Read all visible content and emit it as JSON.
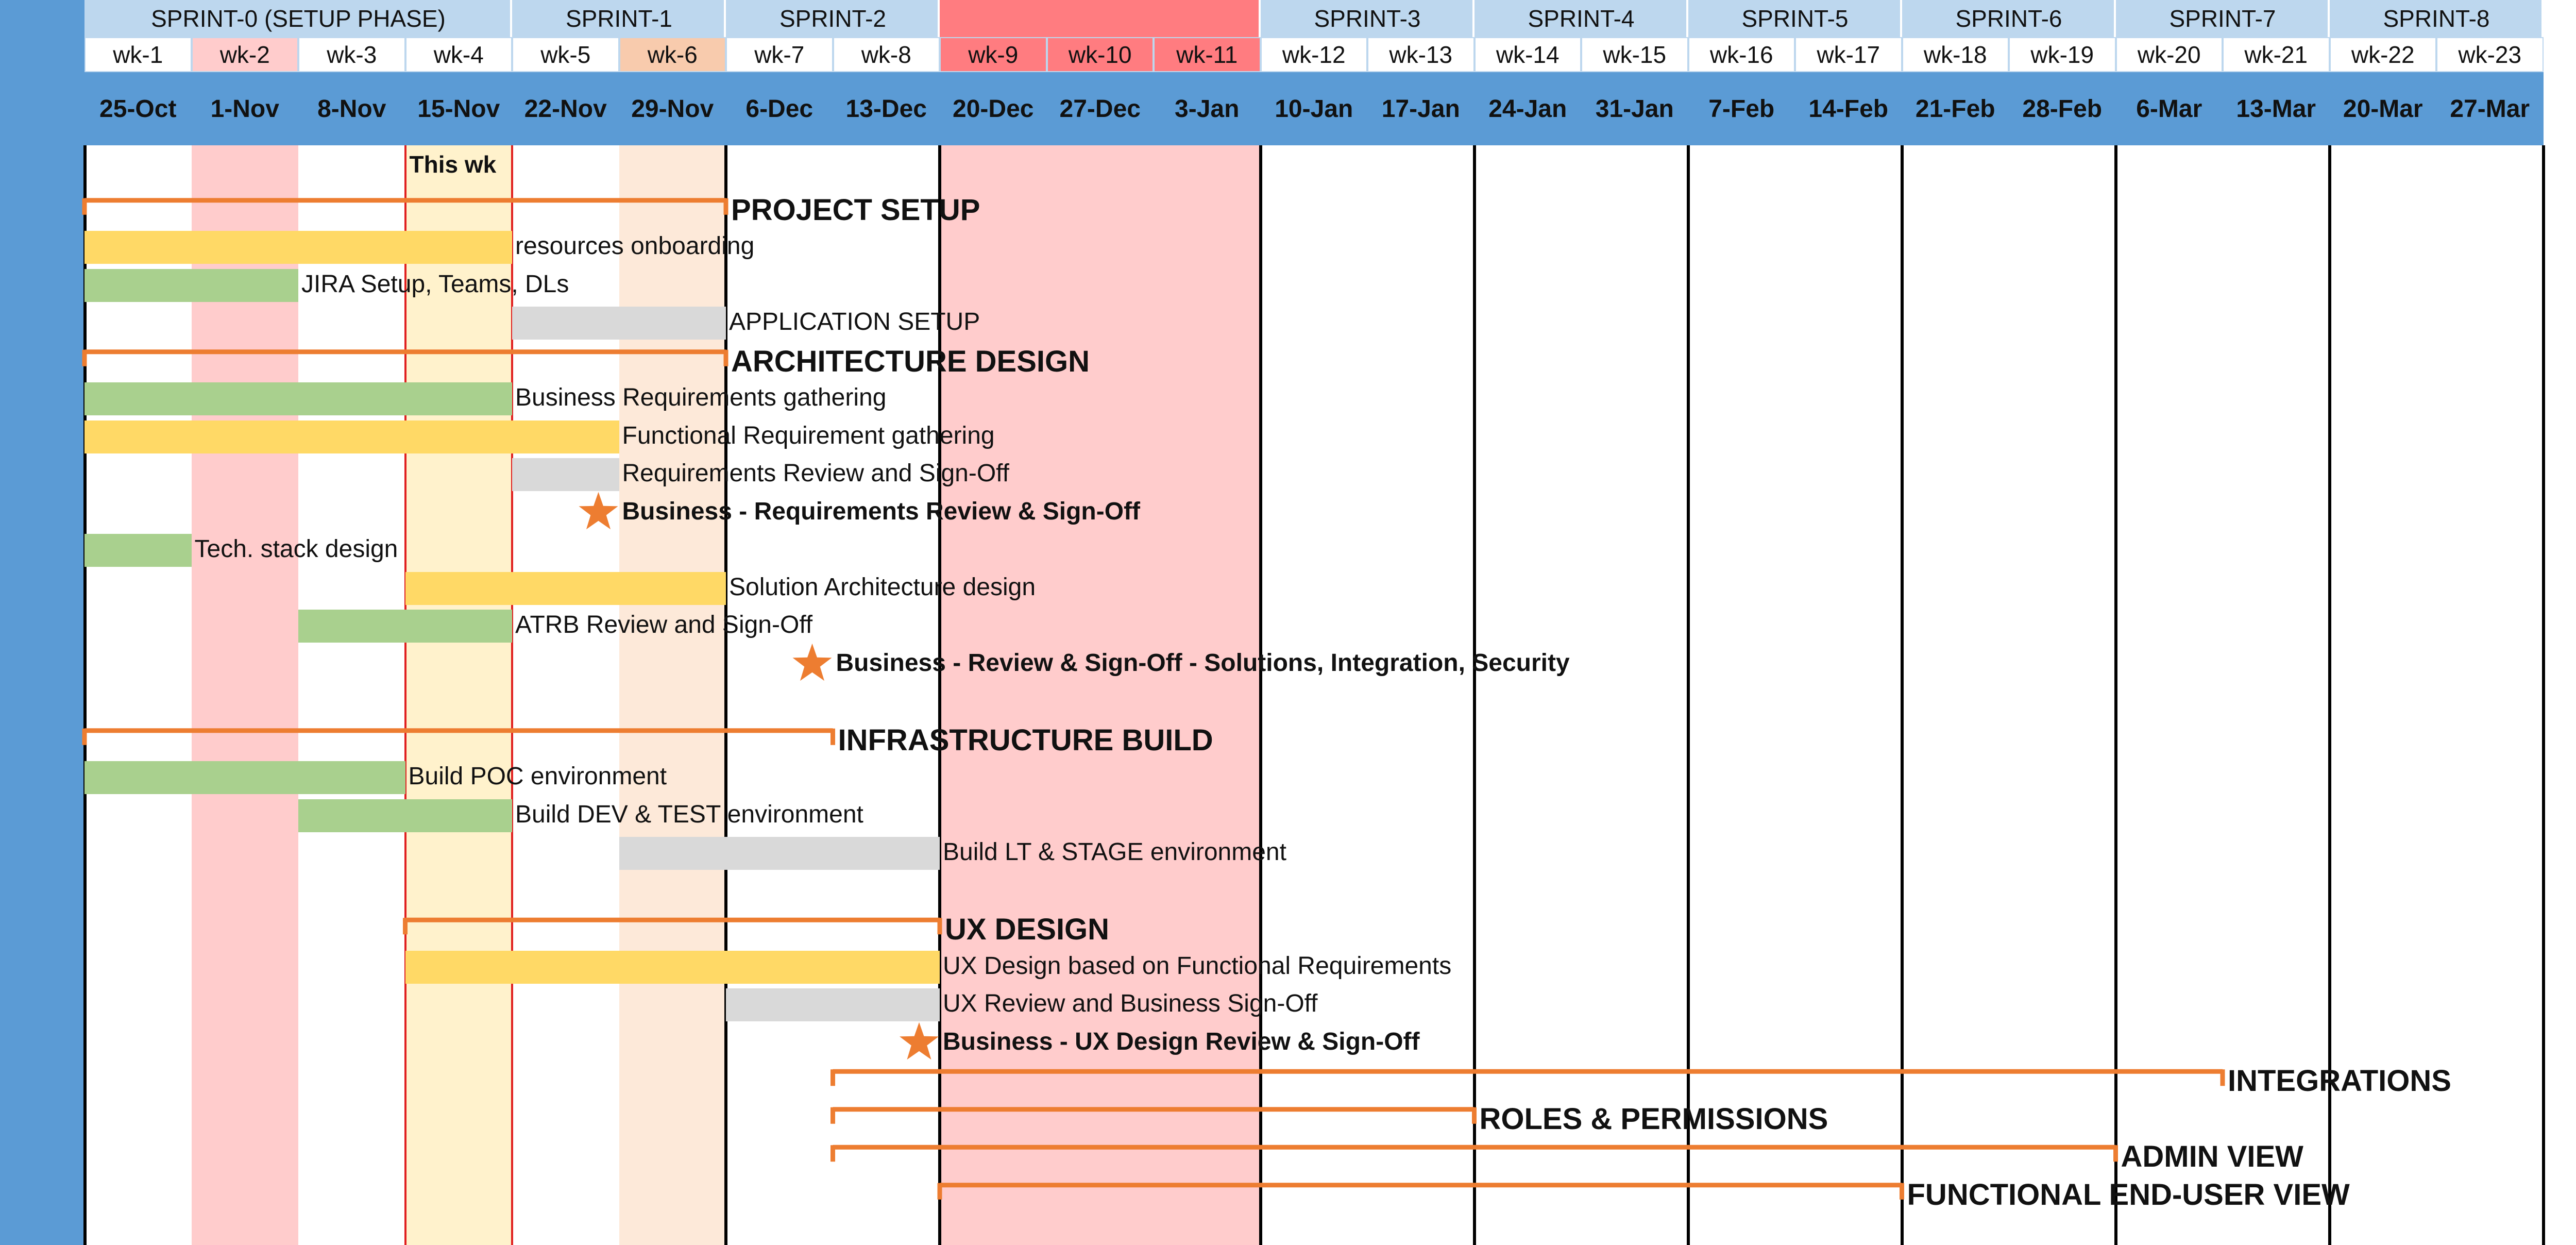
{
  "chart_data": {
    "type": "gantt",
    "colors": {
      "blue_frame": "#5b9bd5",
      "sprint_header": "#bdd7ee",
      "week_header": "#ffffff",
      "date_header": "#5b9bd5",
      "phase_bracket": "#ed7d31",
      "milestone_star": "#ed7d31",
      "bar_green": "#a9d08e",
      "bar_yellow": "#ffd966",
      "bar_gray": "#d9d9d9",
      "highlight_pink": "#ffcccc",
      "highlight_pink_header": "#ff7c80",
      "highlight_peach": "#fde9d9",
      "highlight_peach_header": "#f8cbad",
      "this_week_fill": "#fff2cc",
      "this_week_line": "#e02020",
      "grid_line": "#000000"
    },
    "sprints": [
      {
        "label": "SPRINT-0 (SETUP PHASE)",
        "start": 1,
        "end": 4
      },
      {
        "label": "SPRINT-1",
        "start": 5,
        "end": 6
      },
      {
        "label": "SPRINT-2",
        "start": 7,
        "end": 8
      },
      {
        "label": "",
        "start": 9,
        "end": 11
      },
      {
        "label": "SPRINT-3",
        "start": 12,
        "end": 13
      },
      {
        "label": "SPRINT-4",
        "start": 14,
        "end": 15
      },
      {
        "label": "SPRINT-5",
        "start": 16,
        "end": 17
      },
      {
        "label": "SPRINT-6",
        "start": 18,
        "end": 19
      },
      {
        "label": "SPRINT-7",
        "start": 20,
        "end": 21
      },
      {
        "label": "SPRINT-8",
        "start": 22,
        "end": 23
      }
    ],
    "weeks": [
      "wk-1",
      "wk-2",
      "wk-3",
      "wk-4",
      "wk-5",
      "wk-6",
      "wk-7",
      "wk-8",
      "wk-9",
      "wk-10",
      "wk-11",
      "wk-12",
      "wk-13",
      "wk-14",
      "wk-15",
      "wk-16",
      "wk-17",
      "wk-18",
      "wk-19",
      "wk-20",
      "wk-21",
      "wk-22",
      "wk-23"
    ],
    "dates": [
      "25-Oct",
      "1-Nov",
      "8-Nov",
      "15-Nov",
      "22-Nov",
      "29-Nov",
      "6-Dec",
      "13-Dec",
      "20-Dec",
      "27-Dec",
      "3-Jan",
      "10-Jan",
      "17-Jan",
      "24-Jan",
      "31-Jan",
      "7-Feb",
      "14-Feb",
      "21-Feb",
      "28-Feb",
      "6-Mar",
      "13-Mar",
      "20-Mar",
      "27-Mar"
    ],
    "this_week": {
      "label": "This wk",
      "week": 4
    },
    "highlights": [
      {
        "week_start": 2,
        "week_end": 2,
        "color": "highlight_pink",
        "header_color": "highlight_pink"
      },
      {
        "week_start": 6,
        "week_end": 6,
        "color": "highlight_peach",
        "header_color": "highlight_peach_header"
      },
      {
        "week_start": 9,
        "week_end": 11,
        "color": "highlight_pink",
        "header_color": "highlight_pink_header"
      }
    ],
    "sprint_boundaries_after_week": [
      6,
      8,
      11,
      13,
      15,
      17,
      19,
      21,
      23
    ],
    "rows": [
      {
        "type": "phase",
        "label": "PROJECT SETUP",
        "start": 1,
        "end": 7
      },
      {
        "type": "task",
        "label": "resources onboarding",
        "start": 1,
        "end": 5,
        "color": "bar_yellow"
      },
      {
        "type": "task",
        "label": "JIRA Setup, Teams, DLs",
        "start": 1,
        "end": 3,
        "color": "bar_green"
      },
      {
        "type": "task",
        "label": "APPLICATION SETUP",
        "start": 5,
        "end": 7,
        "color": "bar_gray"
      },
      {
        "type": "phase",
        "label": "ARCHITECTURE DESIGN",
        "start": 1,
        "end": 7
      },
      {
        "type": "task",
        "label": "Business Requirements gathering",
        "start": 1,
        "end": 5,
        "color": "bar_green"
      },
      {
        "type": "task",
        "label": "Functional Requirement gathering",
        "start": 1,
        "end": 6,
        "color": "bar_yellow"
      },
      {
        "type": "task",
        "label": "Requirements Review and Sign-Off",
        "start": 5,
        "end": 6,
        "color": "bar_gray"
      },
      {
        "type": "milestone",
        "label": "Business - Requirements Review & Sign-Off",
        "at": 6
      },
      {
        "type": "task",
        "label": "Tech. stack design",
        "start": 1,
        "end": 2,
        "color": "bar_green"
      },
      {
        "type": "task",
        "label": "Solution Architecture design",
        "start": 4,
        "end": 7,
        "color": "bar_yellow"
      },
      {
        "type": "task",
        "label": "ATRB Review and Sign-Off",
        "start": 3,
        "end": 5,
        "color": "bar_green"
      },
      {
        "type": "milestone",
        "label": "Business - Review & Sign-Off - Solutions, Integration, Security",
        "at": 8
      },
      {
        "type": "spacer"
      },
      {
        "type": "phase",
        "label": "INFRASTRUCTURE BUILD",
        "start": 1,
        "end": 8
      },
      {
        "type": "task",
        "label": "Build POC environment",
        "start": 1,
        "end": 4,
        "color": "bar_green"
      },
      {
        "type": "task",
        "label": "Build DEV & TEST environment",
        "start": 3,
        "end": 5,
        "color": "bar_green"
      },
      {
        "type": "task",
        "label": "Build LT & STAGE environment",
        "start": 6,
        "end": 9,
        "color": "bar_gray"
      },
      {
        "type": "spacer"
      },
      {
        "type": "phase",
        "label": "UX DESIGN",
        "start": 4,
        "end": 9
      },
      {
        "type": "task",
        "label": "UX Design based on Functional Requirements",
        "start": 4,
        "end": 9,
        "color": "bar_yellow"
      },
      {
        "type": "task",
        "label": "UX Review and Business Sign-Off",
        "start": 7,
        "end": 9,
        "color": "bar_gray"
      },
      {
        "type": "milestone",
        "label": "Business - UX Design Review & Sign-Off",
        "at": 9
      },
      {
        "type": "phase",
        "label": "INTEGRATIONS",
        "start": 8,
        "end": 21
      },
      {
        "type": "phase",
        "label": "ROLES & PERMISSIONS",
        "start": 8,
        "end": 14
      },
      {
        "type": "phase",
        "label": "ADMIN VIEW",
        "start": 8,
        "end": 20
      },
      {
        "type": "phase",
        "label": "FUNCTIONAL END-USER VIEW",
        "start": 9,
        "end": 18
      }
    ]
  }
}
